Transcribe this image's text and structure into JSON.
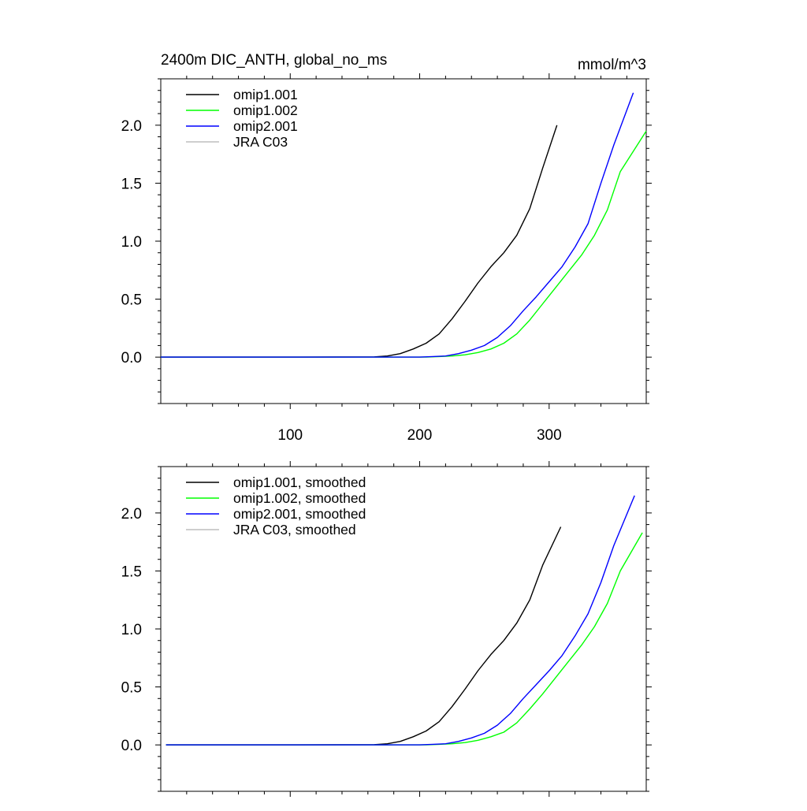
{
  "chart_data": [
    {
      "type": "line",
      "title": "2400m DIC_ANTH, global_no_ms",
      "units": "mmol/m^3",
      "xlabel": "",
      "ylabel": "",
      "xlim": [
        0,
        375
      ],
      "ylim": [
        -0.4,
        2.4
      ],
      "xticks": [
        100,
        200,
        300
      ],
      "xtick_labels": [
        "100",
        "200",
        "300"
      ],
      "yticks": [
        0,
        0.5,
        1,
        1.5,
        2
      ],
      "ytick_labels": [
        "0.0",
        "0.5",
        "1.0",
        "1.5",
        "2.0"
      ],
      "show_xtick_labels": true,
      "grid": false,
      "legend_position": "top-left",
      "series": [
        {
          "name": "omip1.001",
          "color": "#000000",
          "points": [
            [
              0,
              0
            ],
            [
              100,
              0
            ],
            [
              165,
              0.002
            ],
            [
              175,
              0.01
            ],
            [
              185,
              0.03
            ],
            [
              195,
              0.07
            ],
            [
              205,
              0.12
            ],
            [
              215,
              0.2
            ],
            [
              225,
              0.33
            ],
            [
              235,
              0.48
            ],
            [
              245,
              0.64
            ],
            [
              255,
              0.78
            ],
            [
              265,
              0.9
            ],
            [
              275,
              1.05
            ],
            [
              285,
              1.28
            ],
            [
              295,
              1.63
            ],
            [
              306,
              2.0
            ]
          ]
        },
        {
          "name": "omip1.002",
          "color": "#00ff00",
          "points": [
            [
              0,
              0
            ],
            [
              100,
              0
            ],
            [
              205,
              0
            ],
            [
              215,
              0.005
            ],
            [
              225,
              0.01
            ],
            [
              235,
              0.02
            ],
            [
              245,
              0.04
            ],
            [
              255,
              0.07
            ],
            [
              265,
              0.12
            ],
            [
              275,
              0.2
            ],
            [
              285,
              0.32
            ],
            [
              295,
              0.46
            ],
            [
              305,
              0.6
            ],
            [
              315,
              0.74
            ],
            [
              325,
              0.88
            ],
            [
              335,
              1.05
            ],
            [
              345,
              1.27
            ],
            [
              355,
              1.6
            ],
            [
              375,
              1.95
            ]
          ]
        },
        {
          "name": "omip2.001",
          "color": "#0000ff",
          "points": [
            [
              0,
              0
            ],
            [
              100,
              0
            ],
            [
              200,
              0
            ],
            [
              210,
              0.005
            ],
            [
              220,
              0.01
            ],
            [
              230,
              0.03
            ],
            [
              240,
              0.06
            ],
            [
              250,
              0.1
            ],
            [
              260,
              0.17
            ],
            [
              270,
              0.27
            ],
            [
              280,
              0.4
            ],
            [
              290,
              0.52
            ],
            [
              300,
              0.65
            ],
            [
              310,
              0.78
            ],
            [
              320,
              0.95
            ],
            [
              330,
              1.15
            ],
            [
              340,
              1.5
            ],
            [
              350,
              1.83
            ],
            [
              365,
              2.28
            ]
          ]
        },
        {
          "name": "JRA C03",
          "color": "#bdbdbd",
          "points": []
        }
      ]
    },
    {
      "type": "line",
      "title": "",
      "units": "",
      "xlabel": "",
      "ylabel": "",
      "xlim": [
        0,
        375
      ],
      "ylim": [
        -0.4,
        2.4
      ],
      "xticks": [
        100,
        200,
        300
      ],
      "xtick_labels": [
        "100",
        "200",
        "300"
      ],
      "yticks": [
        0,
        0.5,
        1,
        1.5,
        2
      ],
      "ytick_labels": [
        "0.0",
        "0.5",
        "1.0",
        "1.5",
        "2.0"
      ],
      "show_xtick_labels": false,
      "grid": false,
      "legend_position": "top-left",
      "series": [
        {
          "name": "omip1.001, smoothed",
          "color": "#000000",
          "points": [
            [
              4,
              0
            ],
            [
              100,
              0
            ],
            [
              165,
              0.002
            ],
            [
              175,
              0.01
            ],
            [
              185,
              0.03
            ],
            [
              195,
              0.07
            ],
            [
              205,
              0.12
            ],
            [
              215,
              0.2
            ],
            [
              225,
              0.33
            ],
            [
              235,
              0.48
            ],
            [
              245,
              0.64
            ],
            [
              255,
              0.78
            ],
            [
              265,
              0.9
            ],
            [
              275,
              1.05
            ],
            [
              285,
              1.25
            ],
            [
              295,
              1.55
            ],
            [
              309,
              1.88
            ]
          ]
        },
        {
          "name": "omip1.002, smoothed",
          "color": "#00ff00",
          "points": [
            [
              4,
              0
            ],
            [
              100,
              0
            ],
            [
              205,
              0
            ],
            [
              215,
              0.005
            ],
            [
              225,
              0.01
            ],
            [
              235,
              0.02
            ],
            [
              245,
              0.04
            ],
            [
              255,
              0.07
            ],
            [
              265,
              0.11
            ],
            [
              275,
              0.19
            ],
            [
              285,
              0.31
            ],
            [
              295,
              0.44
            ],
            [
              305,
              0.58
            ],
            [
              315,
              0.72
            ],
            [
              325,
              0.86
            ],
            [
              335,
              1.02
            ],
            [
              345,
              1.22
            ],
            [
              355,
              1.5
            ],
            [
              372,
              1.83
            ]
          ]
        },
        {
          "name": "omip2.001, smoothed",
          "color": "#0000ff",
          "points": [
            [
              4,
              0
            ],
            [
              100,
              0
            ],
            [
              200,
              0
            ],
            [
              210,
              0.005
            ],
            [
              220,
              0.01
            ],
            [
              230,
              0.03
            ],
            [
              240,
              0.06
            ],
            [
              250,
              0.1
            ],
            [
              260,
              0.17
            ],
            [
              270,
              0.27
            ],
            [
              280,
              0.4
            ],
            [
              290,
              0.52
            ],
            [
              300,
              0.64
            ],
            [
              310,
              0.77
            ],
            [
              320,
              0.94
            ],
            [
              330,
              1.13
            ],
            [
              340,
              1.4
            ],
            [
              350,
              1.72
            ],
            [
              366,
              2.15
            ]
          ]
        },
        {
          "name": "JRA C03, smoothed",
          "color": "#bdbdbd",
          "points": []
        }
      ]
    }
  ]
}
